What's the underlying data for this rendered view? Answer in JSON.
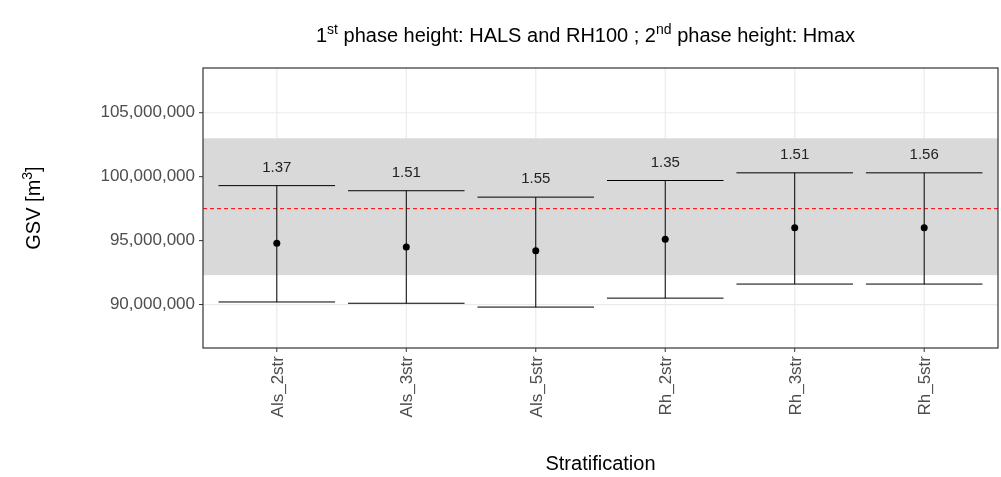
{
  "chart_data": {
    "type": "scatter",
    "title": "1$^{st}$ phase height: HALS and RH100  ;  2$^{nd}$ phase height: Hmax",
    "xlabel": "Stratification",
    "ylabel": "GSV [m$^{3}$]",
    "categories": [
      "Als_2str",
      "Als_3str",
      "Als_5str",
      "Rh_2str",
      "Rh_3str",
      "Rh_5str"
    ],
    "series": [
      {
        "color": "#000000",
        "values": [
          94800000,
          94500000,
          94200000,
          95100000,
          96000000,
          96000000
        ],
        "errors": [
          [
            90200000,
            99300000
          ],
          [
            90100000,
            98900000
          ],
          [
            89800000,
            98400000
          ],
          [
            90500000,
            99700000
          ],
          [
            91600000,
            100300000
          ],
          [
            91600000,
            100300000
          ]
        ]
      }
    ],
    "ylim": [
      86600000,
      108500000
    ],
    "yticks": [
      {
        "value": 90000000,
        "label": "90,000,000"
      },
      {
        "value": 95000000,
        "label": "95,000,000"
      },
      {
        "value": 100000000,
        "label": "100,000,000"
      },
      {
        "value": 105000000,
        "label": "105,000,000"
      }
    ],
    "grid": true,
    "marker": "circle",
    "ref_lines": [
      {
        "axis": "y",
        "value": 97500000,
        "color": "#ff0000",
        "line_style": "dashed"
      }
    ],
    "bands": [
      {
        "axis": "y",
        "from": 92300000,
        "to": 103000000,
        "color": "#d9d9d9"
      }
    ],
    "annotations": [
      "1.37",
      "1.51",
      "1.55",
      "1.35",
      "1.51",
      "1.56"
    ]
  }
}
